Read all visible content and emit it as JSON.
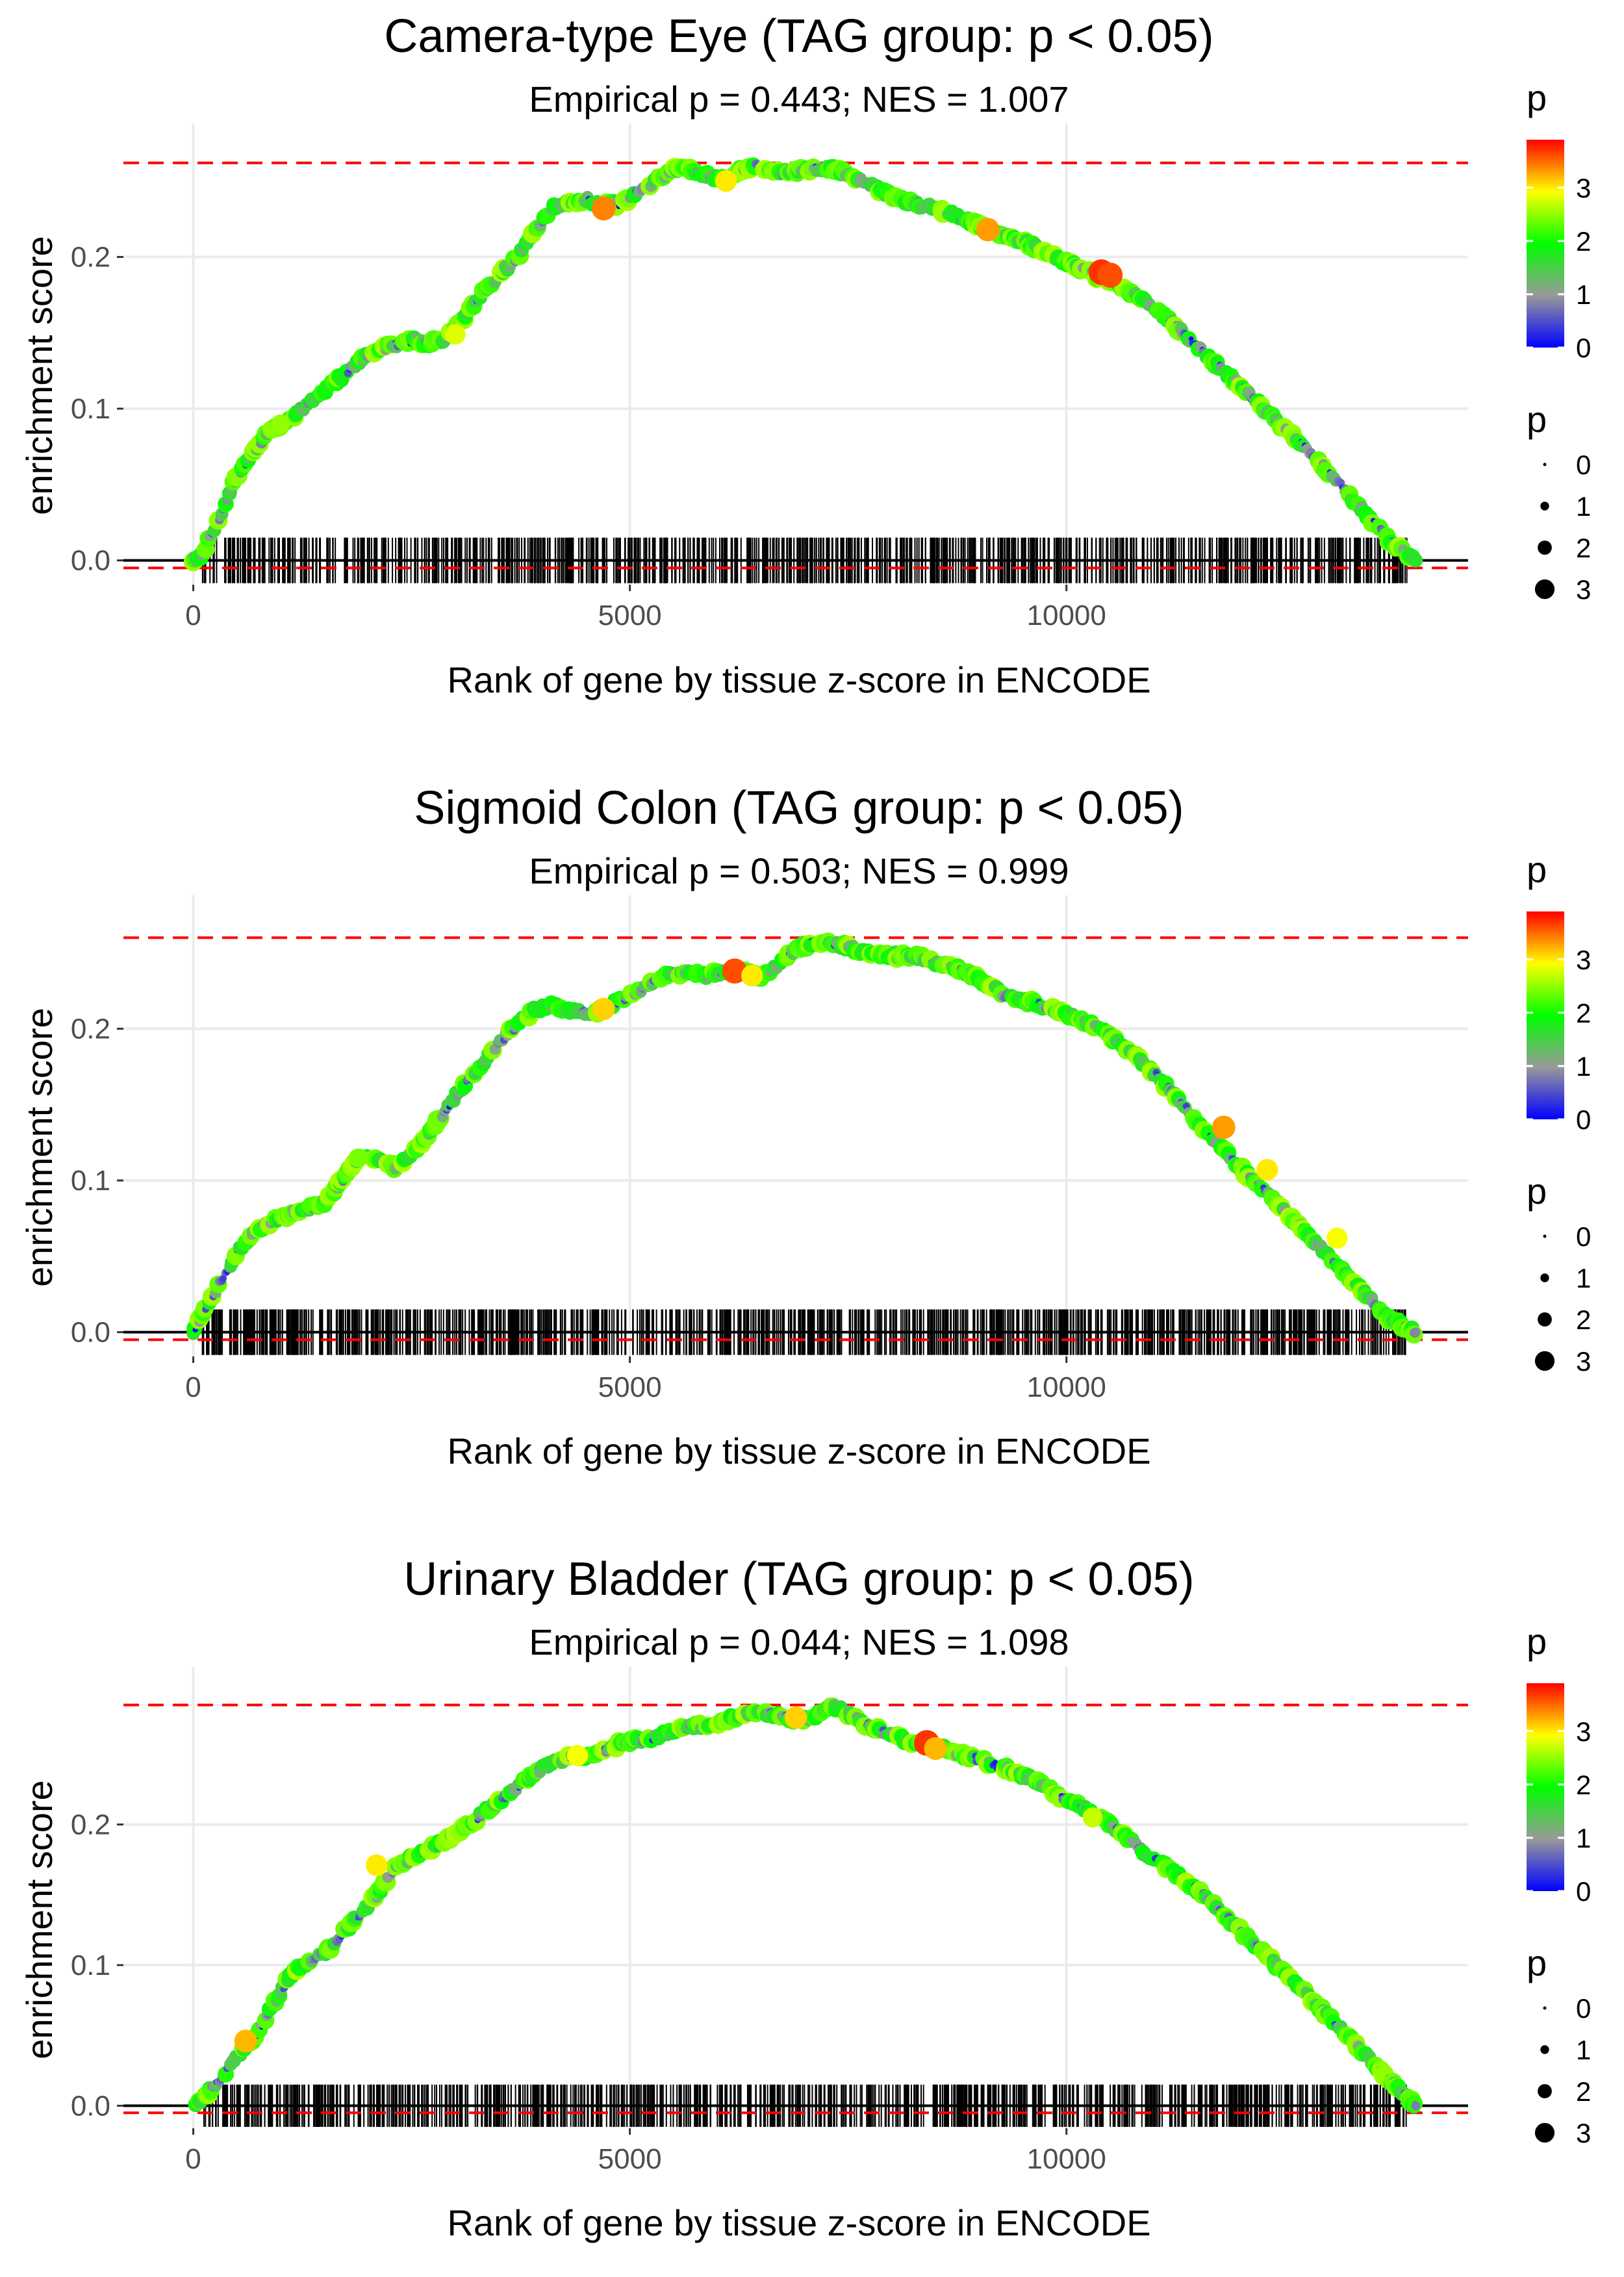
{
  "chart_data": [
    {
      "type": "line",
      "title": "Camera-type Eye (TAG group: p < 0.05)",
      "subtitle": "Empirical p = 0.443; NES = 1.007",
      "xlabel": "Rank of gene by tissue z-score in ENCODE",
      "ylabel": "enrichment score",
      "xlim": [
        -800,
        14600
      ],
      "ylim": [
        -0.016,
        0.288
      ],
      "x_ticks": [
        0,
        5000,
        10000
      ],
      "x_tick_labels": [
        "0",
        "5000",
        "10000"
      ],
      "y_ticks": [
        0.0,
        0.1,
        0.2
      ],
      "y_tick_labels": [
        "0.0",
        "0.1",
        "0.2"
      ],
      "max_es": 0.262,
      "min_es": -0.005,
      "n_genes": 14000,
      "curve": {
        "x": [
          0,
          100,
          300,
          500,
          700,
          900,
          1100,
          1300,
          1500,
          1700,
          1900,
          2100,
          2300,
          2500,
          2700,
          2900,
          3100,
          3300,
          3500,
          3700,
          3900,
          4100,
          4300,
          4500,
          4700,
          4900,
          5100,
          5300,
          5500,
          5700,
          5900,
          6100,
          6300,
          6500,
          6700,
          6900,
          7100,
          7300,
          7500,
          7700,
          7900,
          8100,
          8300,
          8500,
          8700,
          8900,
          9100,
          9300,
          9500,
          9700,
          9900,
          10100,
          10300,
          10500,
          10700,
          10900,
          11100,
          11300,
          11500,
          11700,
          11900,
          12100,
          12300,
          12500,
          12700,
          12900,
          13100,
          13300,
          13500,
          13700,
          13900,
          14000
        ],
        "y": [
          0.0,
          0.004,
          0.028,
          0.056,
          0.072,
          0.087,
          0.093,
          0.103,
          0.112,
          0.121,
          0.131,
          0.139,
          0.142,
          0.145,
          0.143,
          0.147,
          0.16,
          0.176,
          0.188,
          0.199,
          0.216,
          0.232,
          0.236,
          0.238,
          0.234,
          0.235,
          0.244,
          0.25,
          0.258,
          0.257,
          0.253,
          0.251,
          0.258,
          0.26,
          0.255,
          0.257,
          0.258,
          0.259,
          0.254,
          0.249,
          0.243,
          0.237,
          0.235,
          0.231,
          0.228,
          0.223,
          0.218,
          0.214,
          0.21,
          0.205,
          0.199,
          0.194,
          0.189,
          0.184,
          0.177,
          0.17,
          0.161,
          0.152,
          0.141,
          0.13,
          0.12,
          0.109,
          0.098,
          0.087,
          0.076,
          0.064,
          0.052,
          0.039,
          0.026,
          0.013,
          0.004,
          0.0
        ]
      },
      "highlight_points": [
        {
          "x": 4700,
          "y": 0.232,
          "p": 3.4
        },
        {
          "x": 6100,
          "y": 0.25,
          "p": 3.0
        },
        {
          "x": 9100,
          "y": 0.218,
          "p": 3.3
        },
        {
          "x": 10400,
          "y": 0.19,
          "p": 3.7
        },
        {
          "x": 10500,
          "y": 0.188,
          "p": 3.6
        },
        {
          "x": 3000,
          "y": 0.149,
          "p": 2.8
        },
        {
          "x": 1000,
          "y": 0.09,
          "p": 2.5
        }
      ],
      "gene_ticks": {
        "start": 100,
        "end": 13900,
        "count": 900,
        "seed": 11
      }
    },
    {
      "type": "line",
      "title": "Sigmoid Colon (TAG group: p < 0.05)",
      "subtitle": "Empirical p = 0.503; NES = 0.999",
      "xlabel": "Rank of gene by tissue z-score in ENCODE",
      "ylabel": "enrichment score",
      "xlim": [
        -800,
        14600
      ],
      "ylim": [
        -0.016,
        0.288
      ],
      "x_ticks": [
        0,
        5000,
        10000
      ],
      "x_tick_labels": [
        "0",
        "5000",
        "10000"
      ],
      "y_ticks": [
        0.0,
        0.1,
        0.2
      ],
      "y_tick_labels": [
        "0.0",
        "0.1",
        "0.2"
      ],
      "max_es": 0.26,
      "min_es": -0.005,
      "n_genes": 14000,
      "curve": {
        "x": [
          0,
          100,
          300,
          500,
          700,
          900,
          1100,
          1300,
          1500,
          1700,
          1900,
          2100,
          2300,
          2500,
          2700,
          2900,
          3100,
          3300,
          3500,
          3700,
          3900,
          4100,
          4300,
          4500,
          4700,
          4900,
          5100,
          5300,
          5500,
          5700,
          5900,
          6100,
          6300,
          6500,
          6700,
          6900,
          7100,
          7300,
          7500,
          7700,
          7900,
          8100,
          8300,
          8500,
          8700,
          8900,
          9100,
          9300,
          9500,
          9700,
          9900,
          10100,
          10300,
          10500,
          10700,
          10900,
          11100,
          11300,
          11500,
          11700,
          11900,
          12100,
          12300,
          12500,
          12700,
          12900,
          13100,
          13300,
          13500,
          13700,
          13900,
          14000
        ],
        "y": [
          0.0,
          0.012,
          0.032,
          0.052,
          0.067,
          0.073,
          0.078,
          0.081,
          0.085,
          0.1,
          0.115,
          0.113,
          0.109,
          0.118,
          0.132,
          0.147,
          0.163,
          0.176,
          0.191,
          0.202,
          0.212,
          0.215,
          0.212,
          0.21,
          0.213,
          0.219,
          0.225,
          0.232,
          0.236,
          0.237,
          0.235,
          0.238,
          0.237,
          0.233,
          0.243,
          0.252,
          0.257,
          0.256,
          0.254,
          0.25,
          0.249,
          0.248,
          0.247,
          0.244,
          0.241,
          0.236,
          0.229,
          0.222,
          0.218,
          0.216,
          0.212,
          0.207,
          0.202,
          0.195,
          0.186,
          0.177,
          0.165,
          0.153,
          0.139,
          0.126,
          0.114,
          0.102,
          0.091,
          0.08,
          0.068,
          0.056,
          0.044,
          0.032,
          0.02,
          0.009,
          0.002,
          0.0
        ]
      },
      "highlight_points": [
        {
          "x": 4700,
          "y": 0.213,
          "p": 3.1
        },
        {
          "x": 6200,
          "y": 0.238,
          "p": 3.6
        },
        {
          "x": 6400,
          "y": 0.235,
          "p": 3.0
        },
        {
          "x": 11800,
          "y": 0.135,
          "p": 3.3
        },
        {
          "x": 12300,
          "y": 0.107,
          "p": 3.0
        },
        {
          "x": 13100,
          "y": 0.062,
          "p": 2.9
        },
        {
          "x": 1900,
          "y": 0.115,
          "p": 2.4
        }
      ],
      "gene_ticks": {
        "start": 100,
        "end": 13900,
        "count": 1000,
        "seed": 23
      }
    },
    {
      "type": "line",
      "title": "Urinary Bladder (TAG group: p < 0.05)",
      "subtitle": "Empirical p = 0.044; NES = 1.098",
      "xlabel": "Rank of gene by tissue z-score in ENCODE",
      "ylabel": "enrichment score",
      "xlim": [
        -800,
        14600
      ],
      "ylim": [
        -0.016,
        0.312
      ],
      "x_ticks": [
        0,
        5000,
        10000
      ],
      "x_tick_labels": [
        "0",
        "5000",
        "10000"
      ],
      "y_ticks": [
        0.0,
        0.1,
        0.2
      ],
      "y_tick_labels": [
        "0.0",
        "0.1",
        "0.2"
      ],
      "max_es": 0.285,
      "min_es": -0.005,
      "n_genes": 14000,
      "curve": {
        "x": [
          0,
          100,
          300,
          500,
          700,
          900,
          1100,
          1300,
          1500,
          1700,
          1900,
          2100,
          2300,
          2500,
          2700,
          2900,
          3100,
          3300,
          3500,
          3700,
          3900,
          4100,
          4300,
          4500,
          4700,
          4900,
          5100,
          5300,
          5500,
          5700,
          5900,
          6100,
          6300,
          6500,
          6700,
          6900,
          7100,
          7300,
          7500,
          7700,
          7900,
          8100,
          8300,
          8500,
          8700,
          8900,
          9100,
          9300,
          9500,
          9700,
          9900,
          10100,
          10300,
          10500,
          10700,
          10900,
          11100,
          11300,
          11500,
          11700,
          11900,
          12100,
          12300,
          12500,
          12700,
          12900,
          13100,
          13300,
          13500,
          13700,
          13900,
          14000
        ],
        "y": [
          0.0,
          0.005,
          0.018,
          0.035,
          0.048,
          0.07,
          0.092,
          0.102,
          0.108,
          0.122,
          0.135,
          0.15,
          0.168,
          0.176,
          0.182,
          0.19,
          0.197,
          0.207,
          0.216,
          0.226,
          0.236,
          0.244,
          0.247,
          0.249,
          0.252,
          0.258,
          0.26,
          0.262,
          0.266,
          0.27,
          0.27,
          0.275,
          0.278,
          0.28,
          0.277,
          0.275,
          0.276,
          0.285,
          0.279,
          0.271,
          0.266,
          0.261,
          0.258,
          0.256,
          0.252,
          0.248,
          0.244,
          0.24,
          0.235,
          0.229,
          0.221,
          0.215,
          0.208,
          0.2,
          0.19,
          0.18,
          0.172,
          0.163,
          0.153,
          0.142,
          0.13,
          0.118,
          0.106,
          0.094,
          0.082,
          0.07,
          0.057,
          0.044,
          0.031,
          0.018,
          0.006,
          0.0
        ]
      },
      "highlight_points": [
        {
          "x": 600,
          "y": 0.046,
          "p": 3.2
        },
        {
          "x": 2100,
          "y": 0.171,
          "p": 3.0
        },
        {
          "x": 4400,
          "y": 0.249,
          "p": 2.9
        },
        {
          "x": 6900,
          "y": 0.276,
          "p": 3.1
        },
        {
          "x": 8400,
          "y": 0.258,
          "p": 3.7
        },
        {
          "x": 8500,
          "y": 0.254,
          "p": 3.2
        },
        {
          "x": 10300,
          "y": 0.205,
          "p": 2.7
        }
      ],
      "gene_ticks": {
        "start": 100,
        "end": 13900,
        "count": 950,
        "seed": 37
      }
    }
  ],
  "legend": {
    "color_title": "p",
    "color_ticks": [
      0,
      1,
      2,
      3
    ],
    "color_tick_labels": [
      "0",
      "1",
      "2",
      "3"
    ],
    "color_max": 3.9,
    "color_stops": [
      "#0000ff",
      "#999999",
      "#00ff00",
      "#ffff00",
      "#ff0000"
    ],
    "size_title": "p",
    "size_values": [
      0,
      1,
      2,
      3
    ],
    "size_labels": [
      "0",
      "1",
      "2",
      "3"
    ]
  },
  "colors": {
    "reference_line": "#ff0000",
    "zero_line": "#000000",
    "gene_tick": "#000000",
    "grid": "#ebebeb",
    "text": "#000000",
    "axis_text": "#4d4d4d"
  }
}
